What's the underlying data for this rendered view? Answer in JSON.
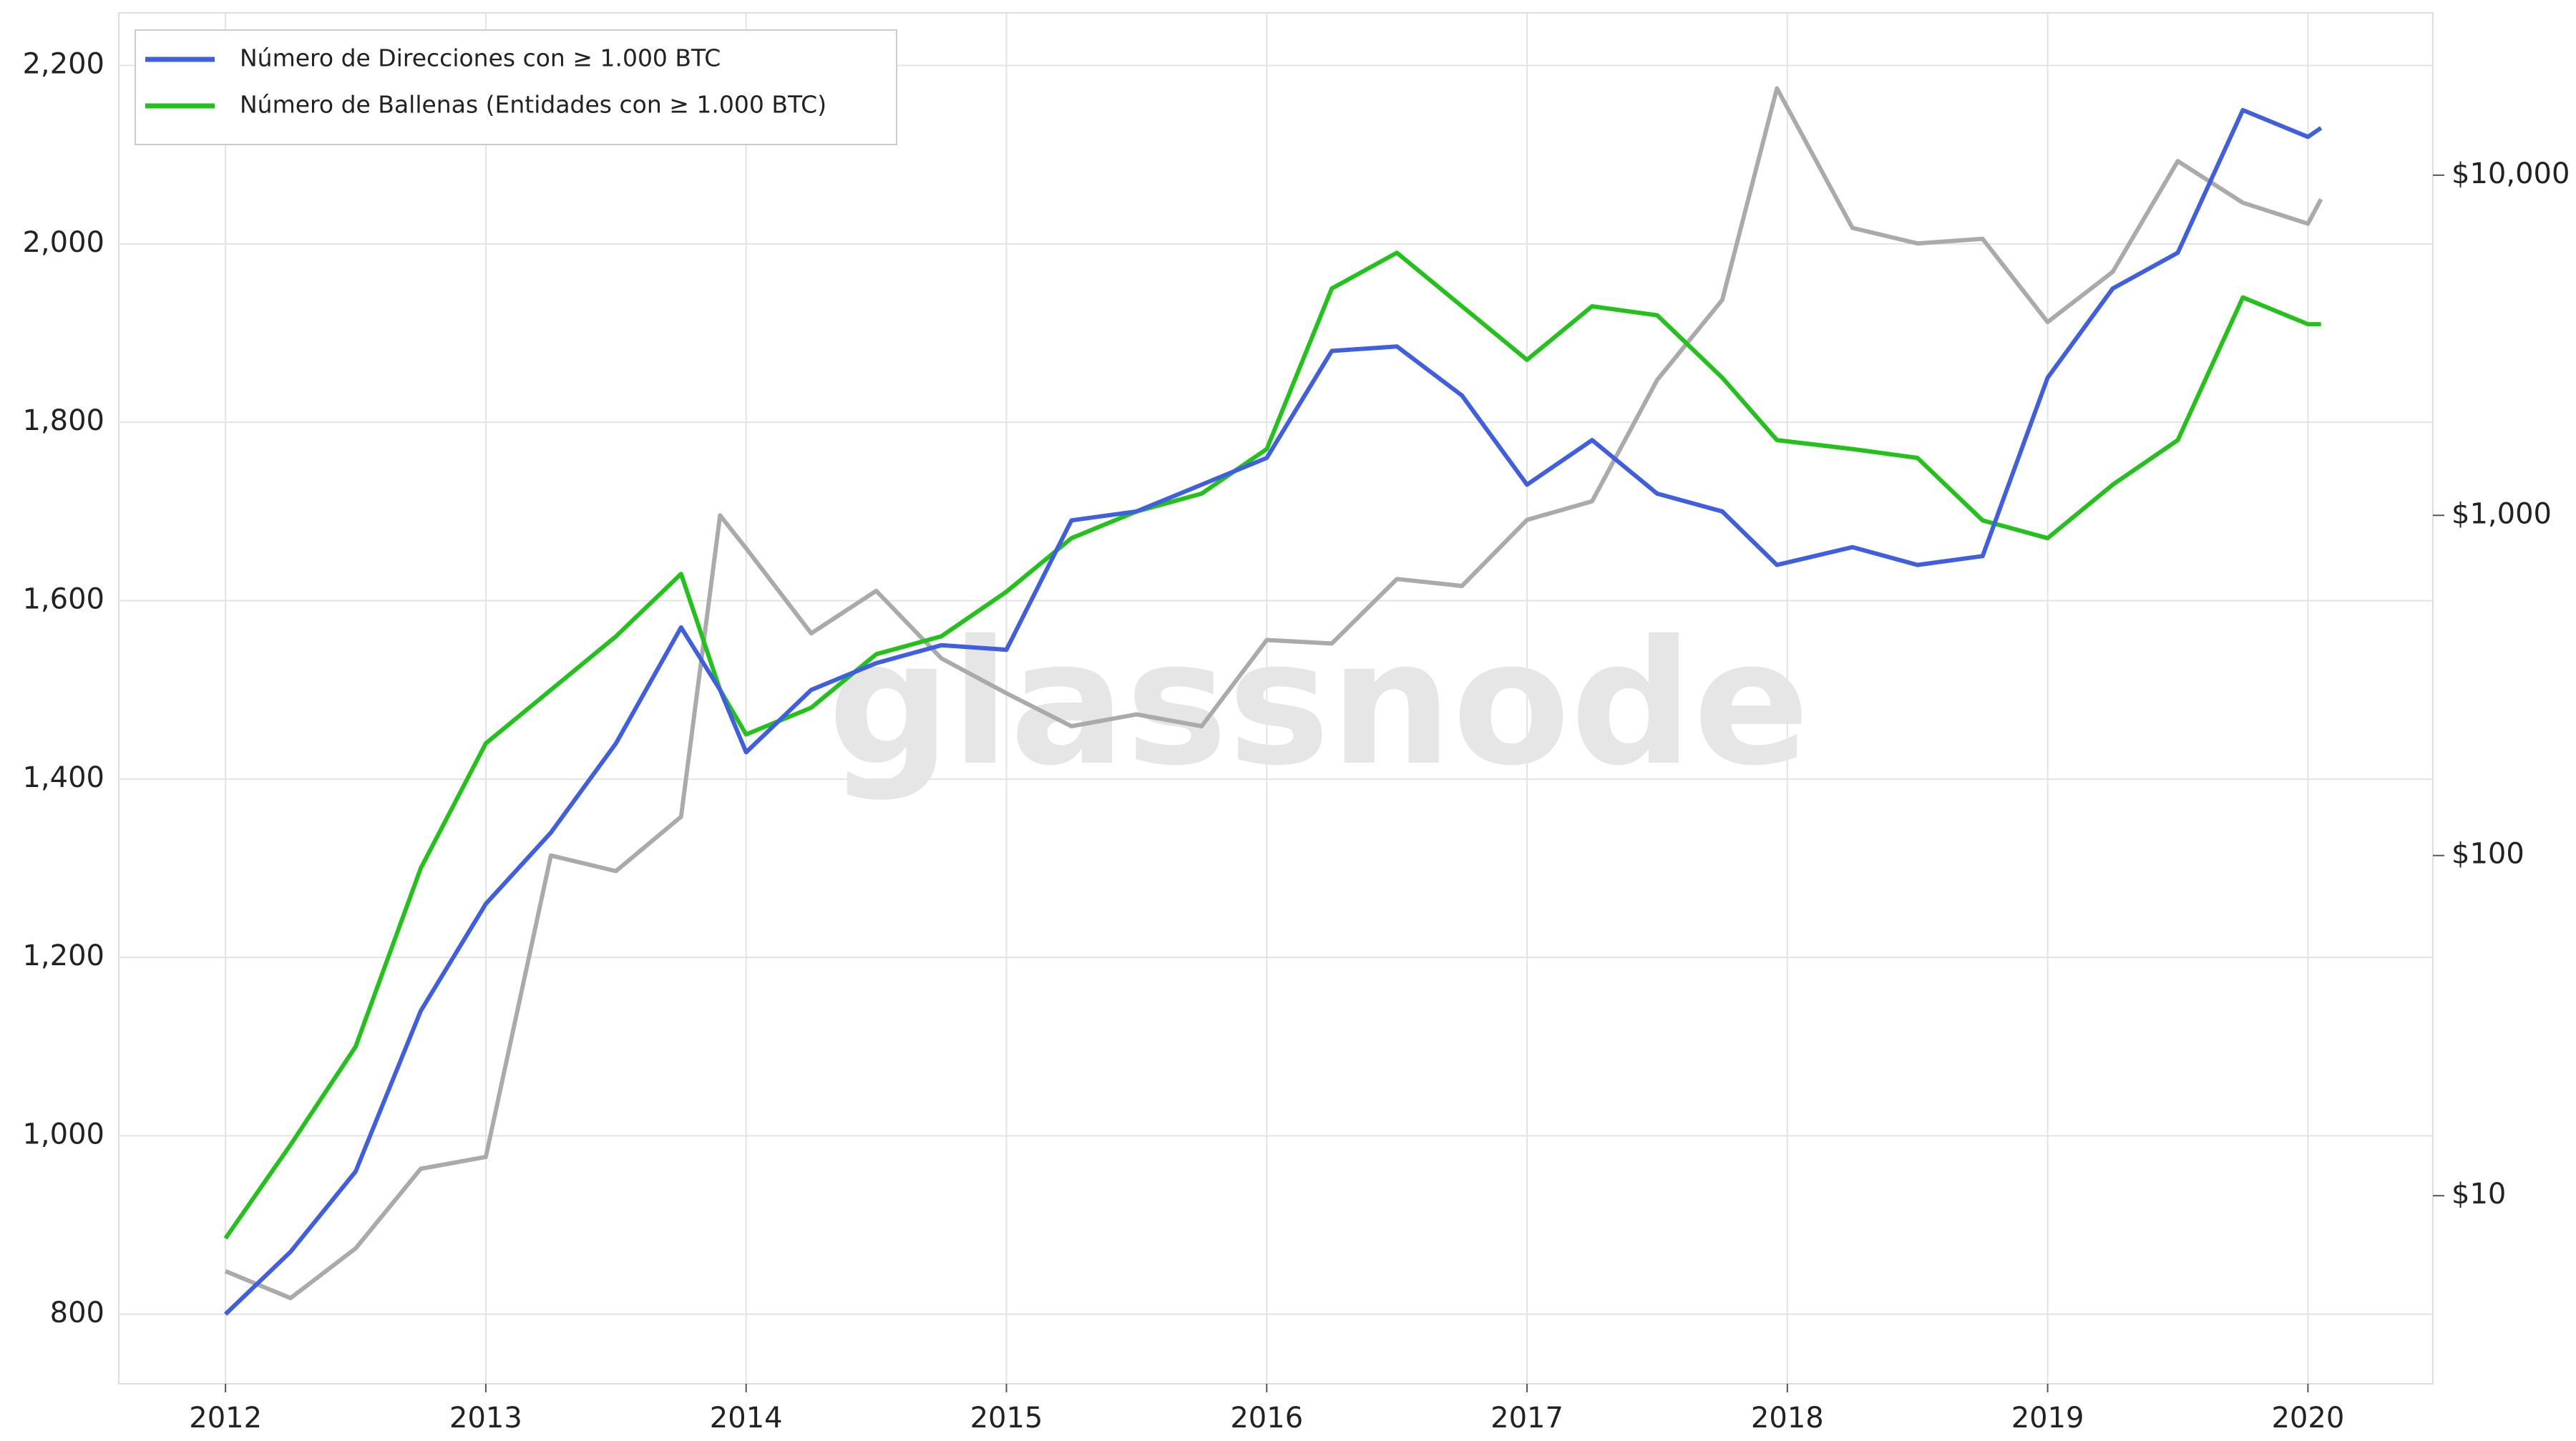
{
  "chart_data": {
    "type": "line",
    "watermark": "glassnode",
    "x": [
      2012.0,
      2012.25,
      2012.5,
      2012.75,
      2013.0,
      2013.25,
      2013.5,
      2013.75,
      2013.9,
      2014.0,
      2014.25,
      2014.5,
      2014.75,
      2015.0,
      2015.25,
      2015.5,
      2015.75,
      2016.0,
      2016.25,
      2016.5,
      2016.75,
      2017.0,
      2017.25,
      2017.5,
      2017.75,
      2017.96,
      2018.25,
      2018.5,
      2018.75,
      2019.0,
      2019.25,
      2019.5,
      2019.75,
      2020.0,
      2020.05
    ],
    "xlim": [
      2011.59,
      2020.48
    ],
    "xticks": [
      2012,
      2013,
      2014,
      2015,
      2016,
      2017,
      2018,
      2019,
      2020
    ],
    "ylim": [
      722,
      2259
    ],
    "yticks": [
      800,
      {
        "value": 1000,
        "label": "1,000"
      },
      {
        "value": 1200,
        "label": "1,200"
      },
      {
        "value": 1400,
        "label": "1,400"
      },
      {
        "value": 1600,
        "label": "1,600"
      },
      {
        "value": 1800,
        "label": "1,800"
      },
      {
        "value": 2000,
        "label": "2,000"
      },
      {
        "value": 2200,
        "label": "2,200"
      }
    ],
    "y2lim": [
      2.8,
      30000
    ],
    "y2ticks": [
      {
        "value": 10,
        "label": "$10"
      },
      {
        "value": 100,
        "label": "$100"
      },
      {
        "value": 1000,
        "label": "$1,000"
      },
      {
        "value": 10000,
        "label": "$10,000"
      }
    ],
    "y2log": true,
    "grid": true,
    "legend": "top-left",
    "series": [
      {
        "name": "Número de Direcciones con ≥ 1.000 BTC",
        "color": "#3f5fe0",
        "values": [
          800,
          870,
          960,
          1140,
          1260,
          1340,
          1440,
          1570,
          1500,
          1430,
          1500,
          1530,
          1550,
          1545,
          1690,
          1700,
          1730,
          1760,
          1880,
          1885,
          1830,
          1730,
          1780,
          1720,
          1700,
          1640,
          1660,
          1640,
          1650,
          1850,
          1950,
          1990,
          2150,
          2120,
          2130
        ]
      },
      {
        "name": "Número de Ballenas (Entidades con ≥ 1.000 BTC)",
        "color": "#22c21a",
        "values": [
          885,
          990,
          1100,
          1300,
          1440,
          1500,
          1560,
          1630,
          1500,
          1450,
          1480,
          1540,
          1560,
          1610,
          1670,
          1700,
          1720,
          1770,
          1950,
          1990,
          1930,
          1870,
          1930,
          1920,
          1850,
          1780,
          1770,
          1760,
          1690,
          1670,
          1730,
          1780,
          1940,
          1910,
          1910
        ]
      },
      {
        "color": "#aaaaaa",
        "axis": "y2",
        "values": [
          6,
          5,
          7,
          12,
          13,
          100,
          90,
          130,
          1000,
          800,
          450,
          600,
          380,
          300,
          240,
          260,
          240,
          430,
          420,
          650,
          620,
          970,
          1100,
          2500,
          4300,
          18000,
          7000,
          6300,
          6500,
          3700,
          5200,
          11000,
          8300,
          7200,
          8500
        ]
      }
    ]
  }
}
